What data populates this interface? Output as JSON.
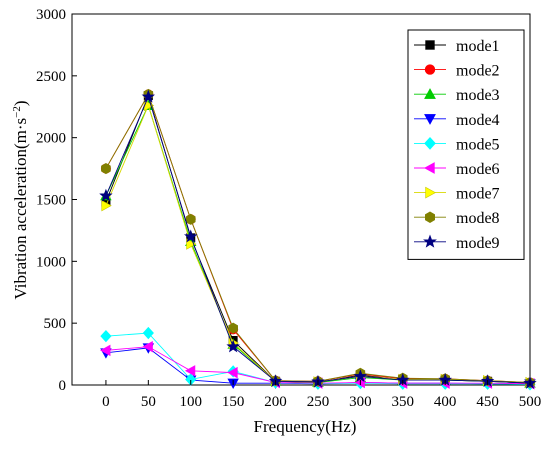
{
  "chart_data": {
    "type": "line",
    "xlabel": "Frequency(Hz)",
    "ylabel": "Vibration acceleration(m·s",
    "ylabel_sup": "−2",
    "ylabel_close": ")",
    "x": [
      0,
      50,
      100,
      150,
      200,
      250,
      300,
      350,
      400,
      450,
      500
    ],
    "x_ticks": [
      "0",
      "50",
      "100",
      "150",
      "200",
      "250",
      "300",
      "350",
      "400",
      "450",
      "500"
    ],
    "y_ticks": [
      "0",
      "500",
      "1000",
      "1500",
      "2000",
      "2500",
      "3000"
    ],
    "xlim": [
      -40,
      500
    ],
    "ylim": [
      0,
      3000
    ],
    "grid": false,
    "legend_position": "top-right",
    "series": [
      {
        "name": "mode1",
        "marker": "square",
        "color": "#000000",
        "values": [
          1480,
          2340,
          1190,
          360,
          30,
          20,
          80,
          40,
          40,
          30,
          15
        ]
      },
      {
        "name": "mode2",
        "marker": "circle",
        "color": "#ff0000",
        "values": [
          1750,
          2350,
          1340,
          450,
          35,
          30,
          90,
          50,
          50,
          35,
          20
        ]
      },
      {
        "name": "mode3",
        "marker": "triangle-up",
        "color": "#00cc00",
        "values": [
          1530,
          2260,
          1160,
          330,
          30,
          20,
          60,
          40,
          40,
          30,
          15
        ]
      },
      {
        "name": "mode4",
        "marker": "triangle-down",
        "color": "#0000ff",
        "values": [
          260,
          300,
          40,
          15,
          15,
          10,
          20,
          15,
          15,
          10,
          10
        ]
      },
      {
        "name": "mode5",
        "marker": "diamond",
        "color": "#00ffff",
        "values": [
          395,
          420,
          45,
          110,
          20,
          10,
          15,
          10,
          10,
          10,
          5
        ]
      },
      {
        "name": "mode6",
        "marker": "triangle-left",
        "color": "#ff00ff",
        "values": [
          280,
          310,
          115,
          100,
          20,
          15,
          20,
          15,
          15,
          15,
          10
        ]
      },
      {
        "name": "mode7",
        "marker": "triangle-right",
        "color": "#ffff00",
        "values": [
          1450,
          2260,
          1140,
          340,
          30,
          25,
          70,
          45,
          45,
          35,
          20
        ]
      },
      {
        "name": "mode8",
        "marker": "hexagon",
        "color": "#808000",
        "values": [
          1750,
          2350,
          1340,
          460,
          35,
          30,
          95,
          55,
          50,
          35,
          20
        ]
      },
      {
        "name": "mode9",
        "marker": "star",
        "color": "#000080",
        "values": [
          1530,
          2330,
          1200,
          310,
          30,
          25,
          70,
          40,
          40,
          30,
          15
        ]
      }
    ]
  }
}
